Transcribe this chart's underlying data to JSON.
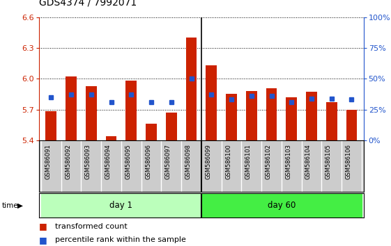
{
  "title": "GDS4374 / 7992071",
  "samples": [
    "GSM586091",
    "GSM586092",
    "GSM586093",
    "GSM586094",
    "GSM586095",
    "GSM586096",
    "GSM586097",
    "GSM586098",
    "GSM586099",
    "GSM586100",
    "GSM586101",
    "GSM586102",
    "GSM586103",
    "GSM586104",
    "GSM586105",
    "GSM586106"
  ],
  "red_values": [
    5.68,
    6.02,
    5.93,
    5.44,
    5.98,
    5.56,
    5.67,
    6.4,
    6.13,
    5.85,
    5.88,
    5.91,
    5.82,
    5.87,
    5.77,
    5.7
  ],
  "blue_percentile": [
    35,
    37,
    37,
    31,
    37,
    31,
    31,
    50,
    37,
    33,
    36,
    36,
    31,
    34,
    34,
    33
  ],
  "day1_count": 8,
  "day60_count": 8,
  "y_min": 5.4,
  "y_max": 6.6,
  "y_ticks": [
    5.4,
    5.7,
    6.0,
    6.3,
    6.6
  ],
  "right_y_ticks": [
    0,
    25,
    50,
    75,
    100
  ],
  "right_y_labels": [
    "0%",
    "25%",
    "50%",
    "75%",
    "100%"
  ],
  "base": 5.4,
  "bar_color": "#cc2200",
  "blue_color": "#2255cc",
  "day1_label": "day 1",
  "day60_label": "day 60",
  "day1_bg": "#bbffbb",
  "day60_bg": "#44ee44",
  "tick_bg": "#cccccc",
  "legend_red": "transformed count",
  "legend_blue": "percentile rank within the sample",
  "bar_width": 0.55,
  "fig_width": 5.61,
  "fig_height": 3.54,
  "dpi": 100
}
